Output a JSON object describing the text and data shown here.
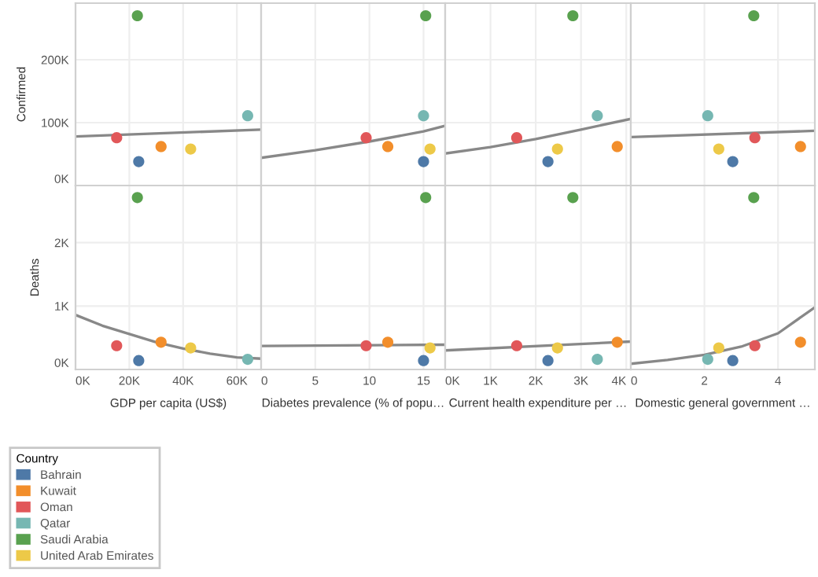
{
  "chart_data": [
    {
      "type": "scatter",
      "ylabel": "Confirmed",
      "xlim": [
        0,
        69000
      ],
      "xticks": [
        0,
        20000,
        40000,
        60000
      ],
      "ylim": [
        0,
        290000
      ],
      "yticks": [
        {
          "value": 0,
          "label": "0K"
        },
        {
          "value": 100000,
          "label": "100K"
        },
        {
          "value": 200000,
          "label": "200K"
        }
      ],
      "tick_labels": "y",
      "grid": true,
      "marker": "circle",
      "series": [
        {
          "color": "#4e79a7",
          "x": [
            23500
          ],
          "values": [
            38000
          ]
        },
        {
          "color": "#f28e2b",
          "x": [
            31800
          ],
          "values": [
            62000
          ]
        },
        {
          "color": "#e15759",
          "x": [
            15300
          ],
          "values": [
            76000
          ]
        },
        {
          "color": "#76b7b2",
          "x": [
            64000
          ],
          "values": [
            111000
          ]
        },
        {
          "color": "#59a14f",
          "x": [
            23000
          ],
          "values": [
            270000
          ]
        },
        {
          "color": "#edc948",
          "x": [
            42800
          ],
          "values": [
            58000
          ]
        },
        {
          "type": "line",
          "marker": "none",
          "color": "#888888",
          "x": [
            0,
            69000
          ],
          "values": [
            78000,
            89000
          ]
        }
      ]
    },
    {
      "type": "scatter",
      "xlim": [
        0,
        17
      ],
      "xticks": [
        0,
        5,
        10,
        15
      ],
      "ylim": [
        0,
        290000
      ],
      "yticks": [
        0,
        100000,
        200000
      ],
      "tick_labels": false,
      "grid": true,
      "marker": "circle",
      "series": [
        {
          "color": "#4e79a7",
          "x": [
            15.0
          ],
          "values": [
            38000
          ]
        },
        {
          "color": "#f28e2b",
          "x": [
            11.7
          ],
          "values": [
            62000
          ]
        },
        {
          "color": "#e15759",
          "x": [
            9.7
          ],
          "values": [
            76000
          ]
        },
        {
          "color": "#76b7b2",
          "x": [
            15.0
          ],
          "values": [
            111000
          ]
        },
        {
          "color": "#59a14f",
          "x": [
            15.2
          ],
          "values": [
            270000
          ]
        },
        {
          "color": "#edc948",
          "x": [
            15.6
          ],
          "values": [
            58000
          ]
        },
        {
          "type": "line",
          "marker": "none",
          "color": "#888888",
          "x": [
            0,
            5,
            10,
            15,
            17
          ],
          "values": [
            44000,
            56000,
            70000,
            86000,
            95000
          ]
        }
      ]
    },
    {
      "type": "scatter",
      "xlim": [
        0,
        4100
      ],
      "xticks": [
        0,
        1000,
        2000,
        3000,
        4000
      ],
      "ylim": [
        0,
        290000
      ],
      "yticks": [
        0,
        100000,
        200000
      ],
      "tick_labels": false,
      "grid": true,
      "marker": "circle",
      "series": [
        {
          "color": "#4e79a7",
          "x": [
            2270
          ],
          "values": [
            38000
          ]
        },
        {
          "color": "#f28e2b",
          "x": [
            3800
          ],
          "values": [
            62000
          ]
        },
        {
          "color": "#e15759",
          "x": [
            1580
          ],
          "values": [
            76000
          ]
        },
        {
          "color": "#76b7b2",
          "x": [
            3360
          ],
          "values": [
            111000
          ]
        },
        {
          "color": "#59a14f",
          "x": [
            2820
          ],
          "values": [
            270000
          ]
        },
        {
          "color": "#edc948",
          "x": [
            2480
          ],
          "values": [
            58000
          ]
        },
        {
          "type": "line",
          "marker": "none",
          "color": "#888888",
          "x": [
            0,
            1000,
            2000,
            3000,
            4100
          ],
          "values": [
            51000,
            61000,
            74000,
            89000,
            106000
          ]
        }
      ]
    },
    {
      "type": "scatter",
      "xlim": [
        0,
        5
      ],
      "xticks": [
        0,
        2,
        4
      ],
      "ylim": [
        0,
        290000
      ],
      "yticks": [
        0,
        100000,
        200000
      ],
      "tick_labels": false,
      "grid": true,
      "marker": "circle",
      "series": [
        {
          "color": "#4e79a7",
          "x": [
            2.77
          ],
          "values": [
            38000
          ]
        },
        {
          "color": "#f28e2b",
          "x": [
            4.61
          ],
          "values": [
            62000
          ]
        },
        {
          "color": "#e15759",
          "x": [
            3.37
          ],
          "values": [
            76000
          ]
        },
        {
          "color": "#76b7b2",
          "x": [
            2.09
          ],
          "values": [
            111000
          ]
        },
        {
          "color": "#59a14f",
          "x": [
            3.34
          ],
          "values": [
            270000
          ]
        },
        {
          "color": "#edc948",
          "x": [
            2.39
          ],
          "values": [
            58000
          ]
        },
        {
          "type": "line",
          "marker": "none",
          "color": "#888888",
          "x": [
            0,
            5
          ],
          "values": [
            77000,
            87000
          ]
        }
      ]
    },
    {
      "type": "scatter",
      "ylabel": "Deaths",
      "xlabel": "GDP per capita (US$)",
      "xlim": [
        0,
        69000
      ],
      "xticks": [
        {
          "value": 0,
          "label": "0K"
        },
        {
          "value": 20000,
          "label": "20K"
        },
        {
          "value": 40000,
          "label": "40K"
        },
        {
          "value": 60000,
          "label": "60K"
        }
      ],
      "ylim": [
        0,
        2900
      ],
      "yticks": [
        {
          "value": 0,
          "label": "0K"
        },
        {
          "value": 1000,
          "label": "1K"
        },
        {
          "value": 2000,
          "label": "2K"
        }
      ],
      "grid": true,
      "marker": "circle",
      "legend": "bottom left",
      "legend_title": "Country",
      "series": [
        {
          "name": "Bahrain",
          "color": "#4e79a7",
          "x": [
            23500
          ],
          "values": [
            140
          ]
        },
        {
          "name": "Kuwait",
          "color": "#f28e2b",
          "x": [
            31800
          ],
          "values": [
            430
          ]
        },
        {
          "name": "Oman",
          "color": "#e15759",
          "x": [
            15300
          ],
          "values": [
            375
          ]
        },
        {
          "name": "Qatar",
          "color": "#76b7b2",
          "x": [
            64000
          ],
          "values": [
            160
          ]
        },
        {
          "name": "Saudi Arabia",
          "color": "#59a14f",
          "x": [
            23000
          ],
          "values": [
            2710
          ]
        },
        {
          "name": "United Arab Emirates",
          "color": "#edc948",
          "x": [
            42800
          ],
          "values": [
            340
          ]
        },
        {
          "type": "line",
          "marker": "none",
          "color": "#888888",
          "x": [
            0,
            10000,
            20000,
            30000,
            40000,
            50000,
            60000,
            69000
          ],
          "values": [
            860,
            690,
            560,
            430,
            330,
            250,
            190,
            170
          ]
        }
      ]
    },
    {
      "type": "scatter",
      "xlabel": "Diabetes prevalence (% of popu…",
      "xlim": [
        0,
        17
      ],
      "xticks": [
        0,
        5,
        10,
        15
      ],
      "ylim": [
        0,
        2900
      ],
      "yticks": [
        0,
        1000,
        2000
      ],
      "tick_labels": "x",
      "grid": true,
      "marker": "circle",
      "series": [
        {
          "color": "#4e79a7",
          "x": [
            15.0
          ],
          "values": [
            140
          ]
        },
        {
          "color": "#f28e2b",
          "x": [
            11.7
          ],
          "values": [
            430
          ]
        },
        {
          "color": "#e15759",
          "x": [
            9.7
          ],
          "values": [
            375
          ]
        },
        {
          "color": "#59a14f",
          "x": [
            15.2
          ],
          "values": [
            2710
          ]
        },
        {
          "color": "#edc948",
          "x": [
            15.6
          ],
          "values": [
            340
          ]
        },
        {
          "type": "line",
          "marker": "none",
          "color": "#888888",
          "x": [
            0,
            17
          ],
          "values": [
            370,
            390
          ]
        }
      ]
    },
    {
      "type": "scatter",
      "xlabel": "Current health expenditure per …",
      "xlim": [
        0,
        4100
      ],
      "xticks": [
        {
          "value": 0,
          "label": "0K"
        },
        {
          "value": 1000,
          "label": "1K"
        },
        {
          "value": 2000,
          "label": "2K"
        },
        {
          "value": 3000,
          "label": "3K"
        },
        {
          "value": 4000,
          "label": "4K"
        }
      ],
      "ylim": [
        0,
        2900
      ],
      "yticks": [
        0,
        1000,
        2000
      ],
      "tick_labels": "x",
      "grid": true,
      "marker": "circle",
      "series": [
        {
          "color": "#4e79a7",
          "x": [
            2270
          ],
          "values": [
            140
          ]
        },
        {
          "color": "#f28e2b",
          "x": [
            3800
          ],
          "values": [
            430
          ]
        },
        {
          "color": "#e15759",
          "x": [
            1580
          ],
          "values": [
            375
          ]
        },
        {
          "color": "#76b7b2",
          "x": [
            3360
          ],
          "values": [
            160
          ]
        },
        {
          "color": "#59a14f",
          "x": [
            2820
          ],
          "values": [
            2710
          ]
        },
        {
          "color": "#edc948",
          "x": [
            2480
          ],
          "values": [
            340
          ]
        },
        {
          "type": "line",
          "marker": "none",
          "color": "#888888",
          "x": [
            0,
            4100
          ],
          "values": [
            300,
            440
          ]
        }
      ]
    },
    {
      "type": "scatter",
      "xlabel": "Domestic general government …",
      "xlim": [
        0,
        5
      ],
      "xticks": [
        0,
        2,
        4
      ],
      "ylim": [
        0,
        2900
      ],
      "yticks": [
        0,
        1000,
        2000
      ],
      "tick_labels": "x",
      "grid": true,
      "marker": "circle",
      "series": [
        {
          "color": "#4e79a7",
          "x": [
            2.77
          ],
          "values": [
            140
          ]
        },
        {
          "color": "#f28e2b",
          "x": [
            4.61
          ],
          "values": [
            430
          ]
        },
        {
          "color": "#e15759",
          "x": [
            3.37
          ],
          "values": [
            375
          ]
        },
        {
          "color": "#76b7b2",
          "x": [
            2.09
          ],
          "values": [
            160
          ]
        },
        {
          "color": "#59a14f",
          "x": [
            3.34
          ],
          "values": [
            2710
          ]
        },
        {
          "color": "#edc948",
          "x": [
            2.39
          ],
          "values": [
            340
          ]
        },
        {
          "type": "line",
          "marker": "none",
          "color": "#888888",
          "x": [
            0,
            1,
            2,
            3,
            4,
            5
          ],
          "values": [
            90,
            150,
            230,
            360,
            570,
            980
          ]
        }
      ]
    }
  ]
}
